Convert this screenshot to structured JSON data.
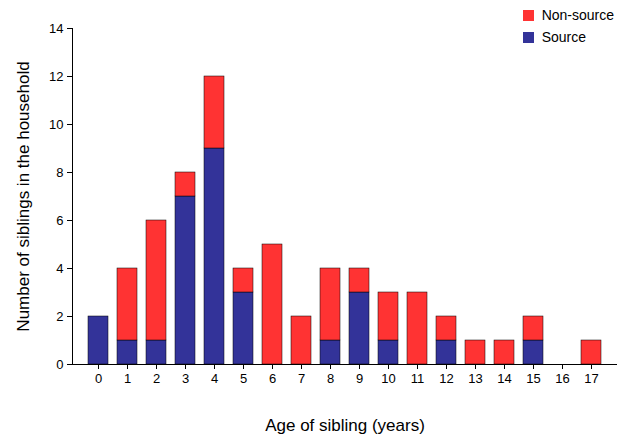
{
  "chart_data": {
    "type": "bar",
    "stacked": true,
    "x_label": "Age of sibling (years)",
    "y_label": "Number of siblings in the household",
    "categories": [
      0,
      1,
      2,
      3,
      4,
      5,
      6,
      7,
      8,
      9,
      10,
      11,
      12,
      13,
      14,
      15,
      16,
      17
    ],
    "series": [
      {
        "name": "Source",
        "color": "#333399",
        "values": [
          2,
          1,
          1,
          7,
          9,
          3,
          0,
          0,
          1,
          3,
          1,
          0,
          1,
          0,
          0,
          1,
          0,
          0
        ]
      },
      {
        "name": "Non-source",
        "color": "#ff3333",
        "values": [
          0,
          3,
          5,
          1,
          3,
          1,
          5,
          2,
          3,
          1,
          2,
          3,
          1,
          1,
          1,
          1,
          0,
          1
        ]
      }
    ],
    "ylim": [
      0,
      14
    ],
    "yticks": [
      0,
      2,
      4,
      6,
      8,
      10,
      12,
      14
    ],
    "grid": false,
    "legend": "top-right"
  }
}
